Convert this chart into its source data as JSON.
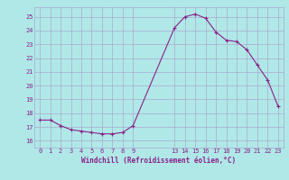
{
  "x": [
    0,
    1,
    2,
    3,
    4,
    5,
    6,
    7,
    8,
    9,
    13,
    14,
    15,
    16,
    17,
    18,
    19,
    20,
    21,
    22,
    23
  ],
  "y": [
    17.5,
    17.5,
    17.1,
    16.8,
    16.7,
    16.6,
    16.5,
    16.5,
    16.6,
    17.1,
    24.2,
    25.0,
    25.2,
    24.9,
    23.9,
    23.3,
    23.2,
    22.6,
    21.5,
    20.4,
    18.5
  ],
  "line_color": "#882288",
  "marker": "+",
  "bg_color": "#b0e8e8",
  "grid_color": "#aaaacc",
  "xlabel": "Windchill (Refroidissement éolien,°C)",
  "xlabel_color": "#882288",
  "tick_color": "#882288",
  "yticks": [
    16,
    17,
    18,
    19,
    20,
    21,
    22,
    23,
    24,
    25
  ],
  "xticks": [
    0,
    1,
    2,
    3,
    4,
    5,
    6,
    7,
    8,
    9,
    13,
    14,
    15,
    16,
    17,
    18,
    19,
    20,
    21,
    22,
    23
  ],
  "ylim": [
    15.5,
    25.7
  ],
  "xlim": [
    -0.5,
    23.5
  ],
  "figwidth": 3.2,
  "figheight": 2.0,
  "dpi": 100
}
